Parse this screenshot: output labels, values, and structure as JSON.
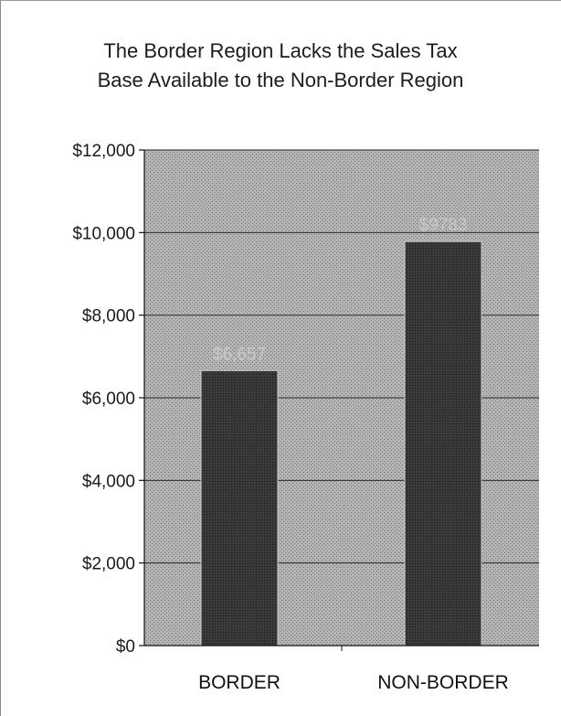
{
  "chart_data": {
    "type": "bar",
    "title": [
      "The Border Region Lacks the Sales Tax",
      "Base Available to the Non-Border Region"
    ],
    "categories": [
      "BORDER",
      "NON-BORDER"
    ],
    "values": [
      6657,
      9783
    ],
    "data_labels": [
      "$6,657",
      "$9783"
    ],
    "ylim": [
      0,
      12000
    ],
    "yticks": [
      0,
      2000,
      4000,
      6000,
      8000,
      10000,
      12000
    ],
    "ytick_labels": [
      "$0",
      "$2,000",
      "$4,000",
      "$6,000",
      "$8,000",
      "$10,000",
      "$12,000"
    ],
    "grid": true,
    "xlabel": "",
    "ylabel": ""
  },
  "colors": {
    "plot_background": "#a8a8a8",
    "bar_fill": "#3e3e3e",
    "gridline": "#2a2a2a",
    "text": "#1a1a1a"
  }
}
